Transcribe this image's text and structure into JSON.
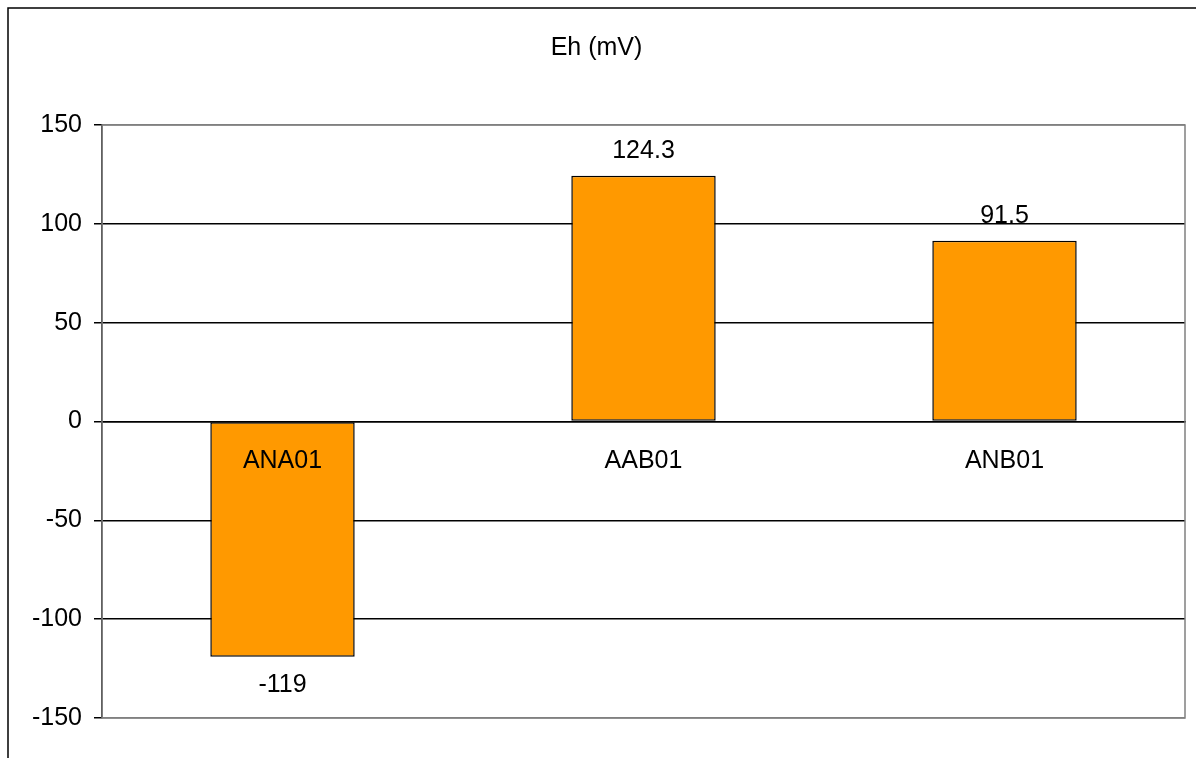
{
  "chart_data": {
    "type": "bar",
    "title": "Eh (mV)",
    "categories": [
      "ANA01",
      "AAB01",
      "ANB01"
    ],
    "values": [
      -119,
      124.3,
      91.5
    ],
    "color": "#ff9900",
    "ylim": [
      -150,
      150
    ],
    "yticks": [
      -150,
      -100,
      -50,
      0,
      50,
      100,
      150
    ],
    "grid": "y",
    "data_labels": true
  }
}
